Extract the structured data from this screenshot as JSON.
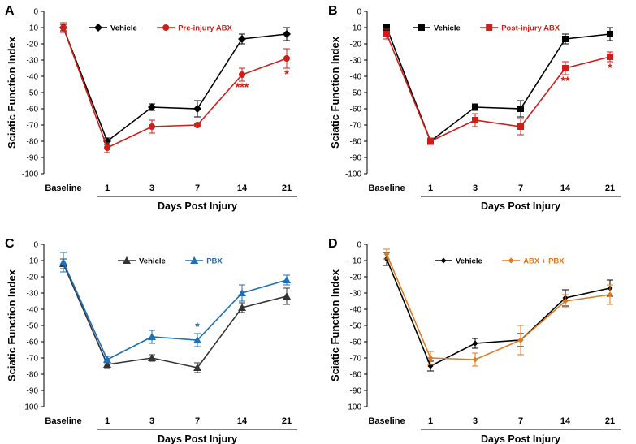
{
  "chart_data": [
    {
      "panel": "A",
      "type": "line",
      "categories": [
        "Baseline",
        "1",
        "3",
        "7",
        "14",
        "21"
      ],
      "ylabel": "Sciatic Function Index",
      "xlabel": "Days Post Injury",
      "ylim": [
        -100,
        0
      ],
      "yticks": [
        0,
        -10,
        -20,
        -30,
        -40,
        -50,
        -60,
        -70,
        -80,
        -90,
        -100
      ],
      "series": [
        {
          "name": "Vehicle",
          "color": "#000000",
          "marker": "diamond",
          "values": [
            -10,
            -80,
            -59,
            -60,
            -17,
            -14
          ],
          "err": [
            2,
            2,
            2,
            5,
            3,
            4
          ]
        },
        {
          "name": "Pre-injury ABX",
          "color": "#cc1f1a",
          "marker": "circle",
          "values": [
            -10,
            -84,
            -71,
            -70,
            -39,
            -29
          ],
          "err": [
            3,
            3,
            4,
            1,
            4,
            6
          ]
        }
      ],
      "significance": [
        {
          "category": "14",
          "label": "***",
          "color": "#cc1f1a"
        },
        {
          "category": "21",
          "label": "*",
          "color": "#cc1f1a"
        }
      ]
    },
    {
      "panel": "B",
      "type": "line",
      "categories": [
        "Baseline",
        "1",
        "3",
        "7",
        "14",
        "21"
      ],
      "ylabel": "Sciatic Function Index",
      "xlabel": "Days Post Injury",
      "ylim": [
        -100,
        0
      ],
      "yticks": [
        0,
        -10,
        -20,
        -30,
        -40,
        -50,
        -60,
        -70,
        -80,
        -90,
        -100
      ],
      "series": [
        {
          "name": "Vehicle",
          "color": "#000000",
          "marker": "square",
          "values": [
            -10,
            -80,
            -59,
            -60,
            -17,
            -14
          ],
          "err": [
            2,
            1,
            2,
            5,
            3,
            4
          ]
        },
        {
          "name": "Post-injury ABX",
          "color": "#cc1f1a",
          "marker": "square",
          "values": [
            -14,
            -80,
            -67,
            -71,
            -35,
            -28
          ],
          "err": [
            3,
            2,
            4,
            5,
            4,
            3
          ]
        }
      ],
      "significance": [
        {
          "category": "14",
          "label": "**",
          "color": "#cc1f1a"
        },
        {
          "category": "21",
          "label": "*",
          "color": "#cc1f1a"
        }
      ]
    },
    {
      "panel": "C",
      "type": "line",
      "categories": [
        "Baseline",
        "1",
        "3",
        "7",
        "14",
        "21"
      ],
      "ylabel": "Sciatic Function Index",
      "xlabel": "Days Post Injury",
      "ylim": [
        -100,
        0
      ],
      "yticks": [
        0,
        -10,
        -20,
        -30,
        -40,
        -50,
        -60,
        -70,
        -80,
        -90,
        -100
      ],
      "series": [
        {
          "name": "Vehicle",
          "color": "#333333",
          "marker": "triangle",
          "values": [
            -12,
            -74,
            -70,
            -76,
            -39,
            -32
          ],
          "err": [
            3,
            2,
            2,
            3,
            3,
            5
          ]
        },
        {
          "name": "PBX",
          "color": "#1f6fb4",
          "marker": "triangle",
          "values": [
            -11,
            -71,
            -57,
            -59,
            -30,
            -22
          ],
          "err": [
            6,
            2,
            4,
            4,
            5,
            3
          ]
        }
      ],
      "significance": [
        {
          "category": "7",
          "label": "*",
          "color": "#1f6fb4"
        }
      ]
    },
    {
      "panel": "D",
      "type": "line",
      "categories": [
        "Baseline",
        "1",
        "3",
        "7",
        "14",
        "21"
      ],
      "ylabel": "Sciatic Function Index",
      "xlabel": "Days Post Injury",
      "ylim": [
        -100,
        0
      ],
      "yticks": [
        0,
        -10,
        -20,
        -30,
        -40,
        -50,
        -60,
        -70,
        -80,
        -90,
        -100
      ],
      "series": [
        {
          "name": "Vehicle",
          "color": "#000000",
          "marker": "diamond-small",
          "values": [
            -9,
            -75,
            -61,
            -59,
            -33,
            -27
          ],
          "err": [
            4,
            3,
            3,
            4,
            5,
            5
          ]
        },
        {
          "name": "ABX + PBX",
          "color": "#e07a1f",
          "marker": "diamond-small",
          "values": [
            -6,
            -70,
            -71,
            -59,
            -35,
            -31
          ],
          "err": [
            3,
            4,
            4,
            9,
            4,
            6
          ]
        }
      ],
      "significance": []
    }
  ]
}
